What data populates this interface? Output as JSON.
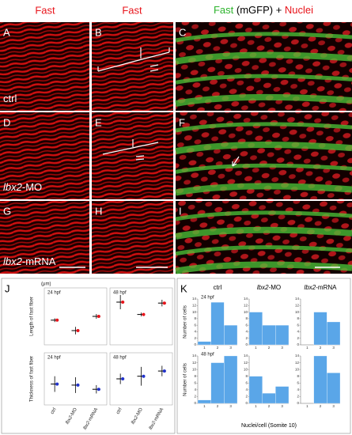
{
  "column_headers": {
    "a": "Fast",
    "b": "Fast",
    "c": [
      "Fast",
      " (mGFP) + ",
      "Nuclei"
    ]
  },
  "panels": [
    "A",
    "B",
    "C",
    "D",
    "E",
    "F",
    "G",
    "H",
    "I"
  ],
  "row_labels": [
    [
      "ctrl"
    ],
    [
      "lbx2",
      "-MO"
    ],
    [
      "lbx2",
      "-mRNA"
    ]
  ],
  "panel_j": {
    "type": "dot",
    "letter": "J",
    "unit": "(μm)",
    "categories": [
      [
        "ctrl"
      ],
      [
        "lbx2",
        "-MO"
      ],
      [
        "lbx2",
        "-mRNA"
      ]
    ],
    "subplots": [
      {
        "ylabel": "Length of fast fiber",
        "color": "#e8141b",
        "ylim": [
          0,
          1200
        ],
        "panels": [
          {
            "label": "24 hpf",
            "values": [
              520,
              300,
              600
            ],
            "errors": [
              40,
              80,
              50
            ]
          },
          {
            "label": "48 hpf",
            "values": [
              900,
              640,
              880
            ],
            "errors": [
              150,
              40,
              70
            ]
          }
        ]
      },
      {
        "ylabel": "Thickness of fast fiber",
        "color": "#2233cc",
        "ylim": [
          0,
          10
        ],
        "panels": [
          {
            "label": "24 hpf",
            "values": [
              4,
              3.8,
              3
            ],
            "errors": [
              1.5,
              1.5,
              0.8
            ]
          },
          {
            "label": "48 hpf",
            "values": [
              5,
              5.5,
              6.5
            ],
            "errors": [
              1,
              1.8,
              1
            ]
          }
        ]
      }
    ]
  },
  "panel_k": {
    "type": "histogram",
    "letter": "K",
    "columns": [
      [
        "ctrl"
      ],
      [
        "lbx2",
        "-MO"
      ],
      [
        "lbx2",
        "-mRNA"
      ]
    ],
    "ylabel": "Number of cells",
    "xlabel": "Nuclei/cell (Somite 10)",
    "color": "#5aa6e8",
    "bins": [
      0.5,
      1.5,
      2.5,
      3.5
    ],
    "xticks": [
      1,
      2,
      3
    ],
    "ylim": [
      0,
      14
    ],
    "yticks": [
      0,
      2,
      4,
      6,
      8,
      10,
      12,
      14
    ],
    "rows": [
      {
        "label": "24 hpf",
        "counts": [
          [
            1,
            13,
            6
          ],
          [
            10,
            6,
            6
          ],
          [
            0,
            10,
            7
          ]
        ]
      },
      {
        "label": "48 hpf",
        "counts": [
          [
            1,
            12,
            14
          ],
          [
            8,
            3,
            5
          ],
          [
            0,
            14,
            9
          ]
        ]
      }
    ]
  }
}
